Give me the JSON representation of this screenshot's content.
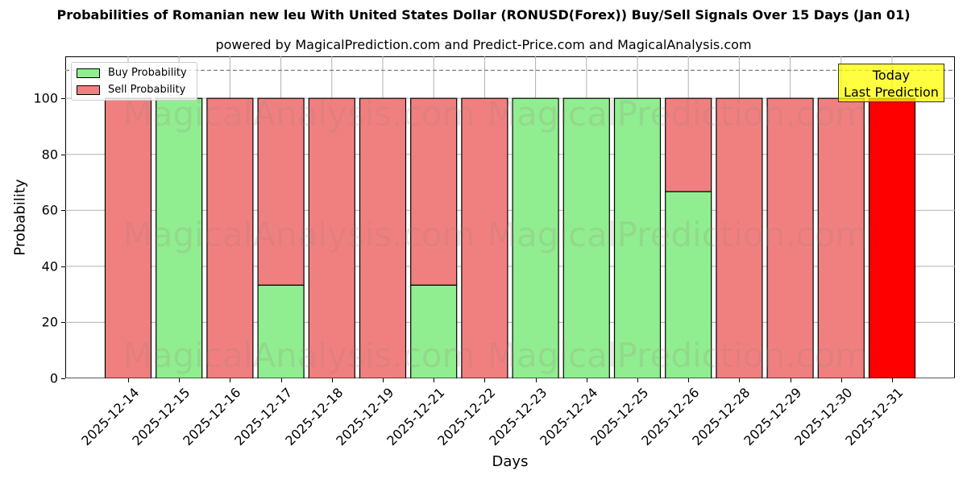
{
  "header": {
    "title": "Probabilities of Romanian new leu With United States Dollar (RONUSD(Forex)) Buy/Sell Signals Over 15 Days (Jan 01)",
    "subtitle": "powered by MagicalPrediction.com and Predict-Price.com and MagicalAnalysis.com"
  },
  "axes": {
    "xlabel": "Days",
    "ylabel": "Probability",
    "yticks": [
      "0",
      "20",
      "40",
      "60",
      "80",
      "100"
    ]
  },
  "legend": {
    "buy_label": "Buy Probability",
    "sell_label": "Sell Probability"
  },
  "annotation": {
    "line1": "Today",
    "line2": "Last Prediction"
  },
  "watermarks": [
    "MagicalAnalysis.com",
    "MagicalPrediction.com"
  ],
  "colors": {
    "buy": "#90ee90",
    "sell": "#f08080",
    "today_sell": "#ff0000",
    "annotation_bg": "#ffff44",
    "threshold_line": "#808080"
  },
  "chart_data": {
    "type": "bar",
    "stacked": true,
    "title": "Probabilities of Romanian new leu With United States Dollar (RONUSD(Forex)) Buy/Sell Signals Over 15 Days (Jan 01)",
    "subtitle": "powered by MagicalPrediction.com and Predict-Price.com and MagicalAnalysis.com",
    "xlabel": "Days",
    "ylabel": "Probability",
    "ylim": [
      0,
      115
    ],
    "yticks": [
      0,
      20,
      40,
      60,
      80,
      100
    ],
    "grid": true,
    "legend_position": "upper left",
    "threshold_line": 110,
    "categories": [
      "2025-12-14",
      "2025-12-15",
      "2025-12-16",
      "2025-12-17",
      "2025-12-18",
      "2025-12-19",
      "2025-12-21",
      "2025-12-22",
      "2025-12-23",
      "2025-12-24",
      "2025-12-25",
      "2025-12-26",
      "2025-12-28",
      "2025-12-29",
      "2025-12-30",
      "2025-12-31"
    ],
    "series": [
      {
        "name": "Buy Probability",
        "values": [
          0,
          100,
          0,
          33.3,
          0,
          0,
          33.3,
          0,
          100,
          100,
          100,
          66.7,
          0,
          0,
          0,
          0
        ]
      },
      {
        "name": "Sell Probability",
        "values": [
          100,
          0,
          100,
          66.7,
          100,
          100,
          66.7,
          100,
          0,
          0,
          0,
          33.3,
          100,
          100,
          100,
          100
        ]
      }
    ],
    "annotations": [
      "Today Last Prediction"
    ]
  }
}
